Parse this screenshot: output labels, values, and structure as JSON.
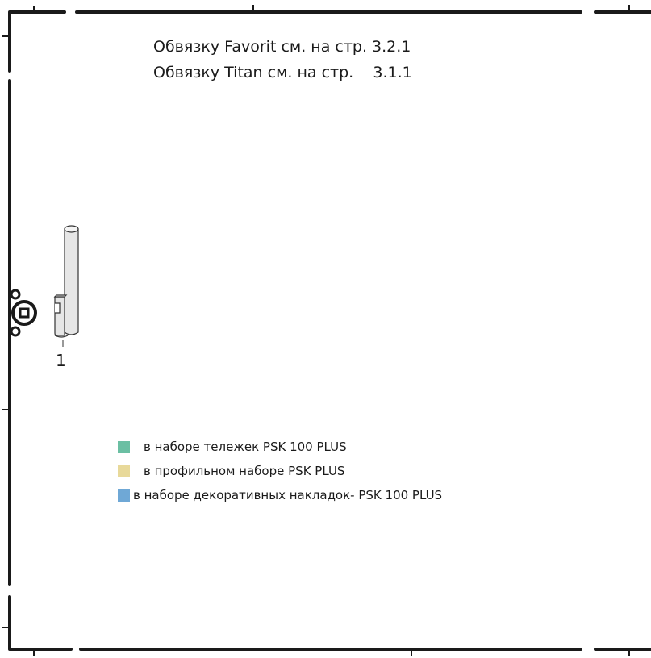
{
  "notes": [
    "Обвязку Favorit см. на стр. 3.2.1",
    "Обвязку Titan см. на стр.    3.1.1"
  ],
  "legend": [
    {
      "label": "в наборе тележек PSK 100 PLUS",
      "color": "#6bbfa3"
    },
    {
      "label": "в профильном наборе PSK PLUS",
      "color": "#e8d99a"
    },
    {
      "label": "в наборе декоративных накладок- PSK 100 PLUS",
      "color": "#6fa8d6"
    }
  ],
  "part_label": "1",
  "colors": {
    "frame": "#1a1a1a",
    "part_fill": "#e6e6e6",
    "part_stroke": "#333333"
  }
}
